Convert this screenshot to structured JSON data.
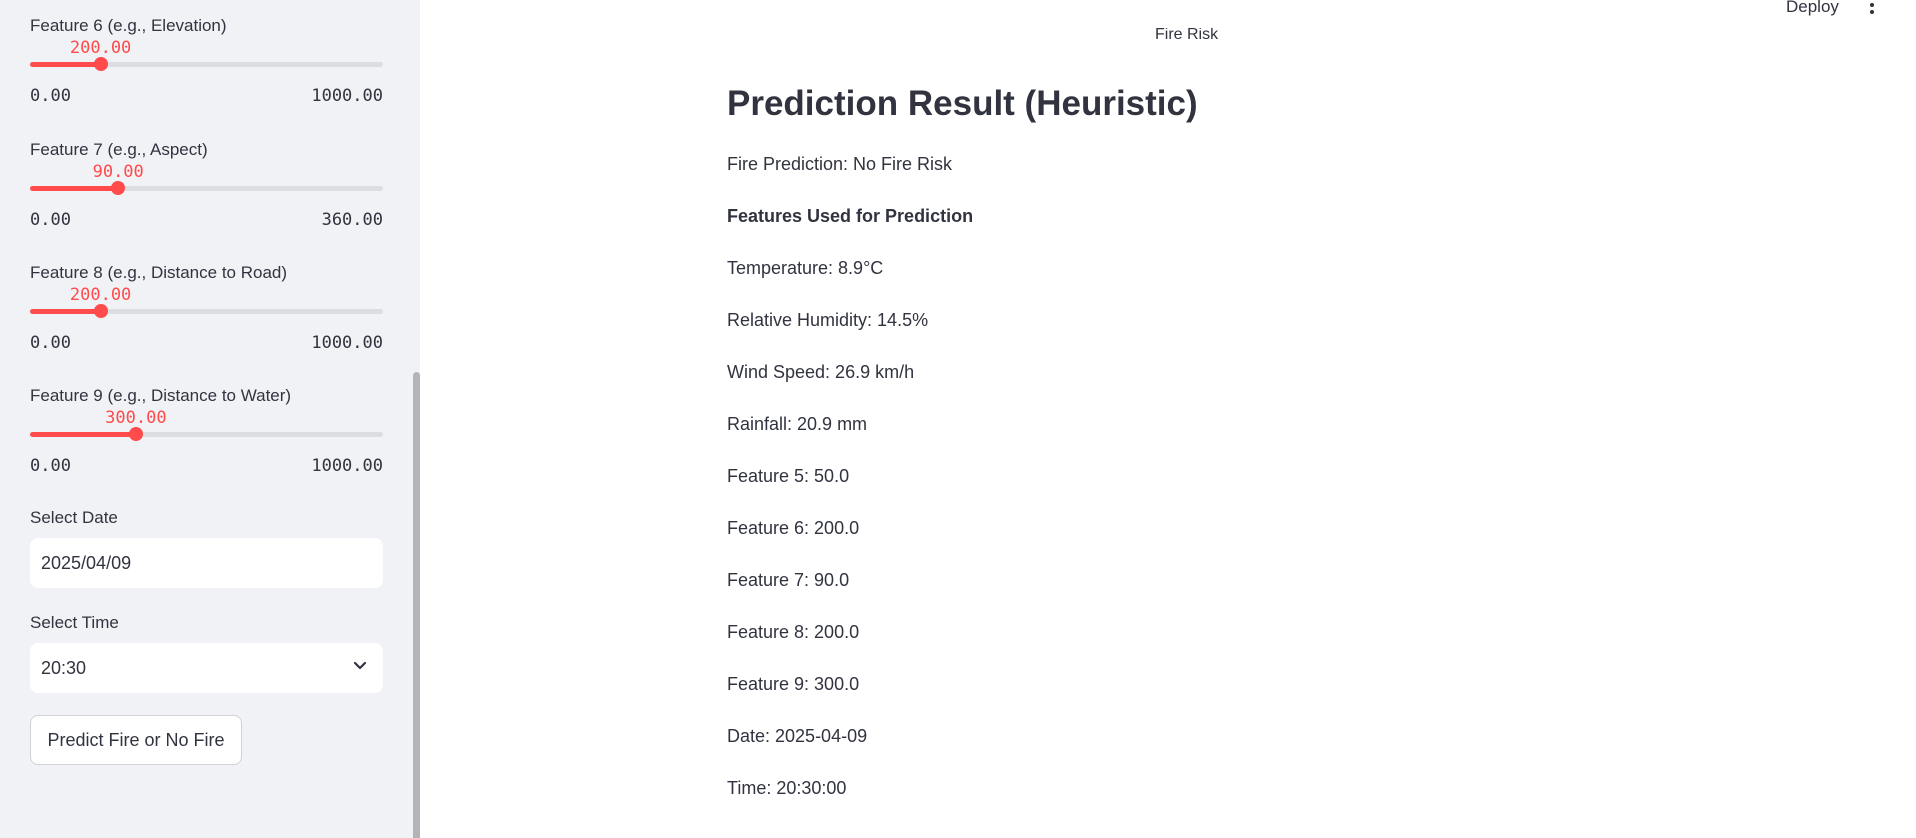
{
  "sidebar": {
    "sliders": [
      {
        "label": "Feature 6 (e.g., Elevation)",
        "value": "200.00",
        "min": "0.00",
        "max": "1000.00",
        "fraction": 0.2
      },
      {
        "label": "Feature 7 (e.g., Aspect)",
        "value": "90.00",
        "min": "0.00",
        "max": "360.00",
        "fraction": 0.25
      },
      {
        "label": "Feature 8 (e.g., Distance to Road)",
        "value": "200.00",
        "min": "0.00",
        "max": "1000.00",
        "fraction": 0.2
      },
      {
        "label": "Feature 9 (e.g., Distance to Water)",
        "value": "300.00",
        "min": "0.00",
        "max": "1000.00",
        "fraction": 0.3
      }
    ],
    "date_label": "Select Date",
    "date_value": "2025/04/09",
    "time_label": "Select Time",
    "time_value": "20:30",
    "predict_button": "Predict Fire or No Fire"
  },
  "header": {
    "deploy": "Deploy",
    "status": "Fire Risk"
  },
  "main": {
    "title": "Prediction Result (Heuristic)",
    "prediction": "Fire Prediction: No Fire Risk",
    "features_heading": "Features Used for Prediction",
    "features": [
      "Temperature: 8.9°C",
      "Relative Humidity: 14.5%",
      "Wind Speed: 26.9 km/h",
      "Rainfall: 20.9 mm",
      "Feature 5: 50.0",
      "Feature 6: 200.0",
      "Feature 7: 90.0",
      "Feature 8: 200.0",
      "Feature 9: 300.0",
      "Date: 2025-04-09",
      "Time: 20:30:00"
    ]
  },
  "colors": {
    "accent": "#ff4b4b",
    "sidebar_bg": "#f0f2f6",
    "text": "#31333f"
  }
}
